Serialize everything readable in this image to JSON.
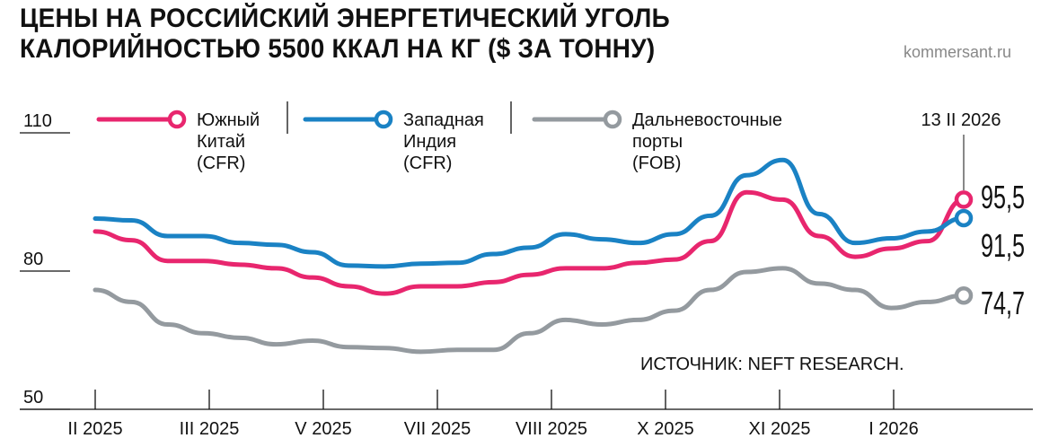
{
  "header": {
    "title_line1": "ЦЕНЫ НА РОССИЙСКИЙ ЭНЕРГЕТИЧЕСКИЙ УГОЛЬ",
    "title_line2": "КАЛОРИЙНОСТЬЮ 5500 ККАЛ НА КГ ($ ЗА ТОННУ)",
    "site": "kommersant.ru"
  },
  "chart_data": {
    "type": "line",
    "title": "ЦЕНЫ НА РОССИЙСКИЙ ЭНЕРГЕТИЧЕСКИЙ УГОЛЬ КАЛОРИЙНОСТЬЮ 5500 ККАЛ НА КГ ($ ЗА ТОННУ)",
    "ylim": [
      50,
      110
    ],
    "yticks": [
      "110",
      "80",
      "50"
    ],
    "xticks": [
      "II 2025",
      "III 2025",
      "V 2025",
      "VII 2025",
      "VIII 2025",
      "X 2025",
      "XI 2025",
      "I 2026"
    ],
    "x_start": "II 2025",
    "x_end": "13 II 2026",
    "end_date_label": "13 II 2026",
    "source": "ИСТОЧНИК: NEFT RESEARCH.",
    "legend_placement": "top",
    "grid": false,
    "series": [
      {
        "name_lines": [
          "Южный",
          "Китай",
          "(CFR)"
        ],
        "color": "#e8266e",
        "end_label": "95,5",
        "values": [
          88.6,
          86.7,
          82.2,
          82.2,
          81.4,
          80.6,
          78.6,
          76.7,
          75.1,
          76.7,
          76.7,
          77.6,
          79.2,
          80.6,
          80.6,
          81.8,
          82.5,
          86.5,
          97.1,
          95.5,
          87.6,
          83.1,
          84.9,
          86.5,
          95.5
        ]
      },
      {
        "name_lines": [
          "Западная",
          "Индия",
          "(CFR)"
        ],
        "color": "#1a82c4",
        "end_label": "91,5",
        "values": [
          91.4,
          91.0,
          87.6,
          87.6,
          86.1,
          85.7,
          84.1,
          81.2,
          81.0,
          81.6,
          81.8,
          83.7,
          85.1,
          88.0,
          86.9,
          86.1,
          88.0,
          92.0,
          100.8,
          104.1,
          92.4,
          86.1,
          87.1,
          88.6,
          91.5
        ]
      },
      {
        "name_lines": [
          "Дальневосточные",
          "порты",
          "(FOB)"
        ],
        "color": "#949a9f",
        "end_label": "74,7",
        "values": [
          75.9,
          73.3,
          68.4,
          66.5,
          65.5,
          64.1,
          64.9,
          63.5,
          63.3,
          62.5,
          62.9,
          62.9,
          66.5,
          69.4,
          68.4,
          69.4,
          71.4,
          75.9,
          79.8,
          80.6,
          77.3,
          75.9,
          72.0,
          73.3,
          74.7
        ]
      }
    ]
  }
}
